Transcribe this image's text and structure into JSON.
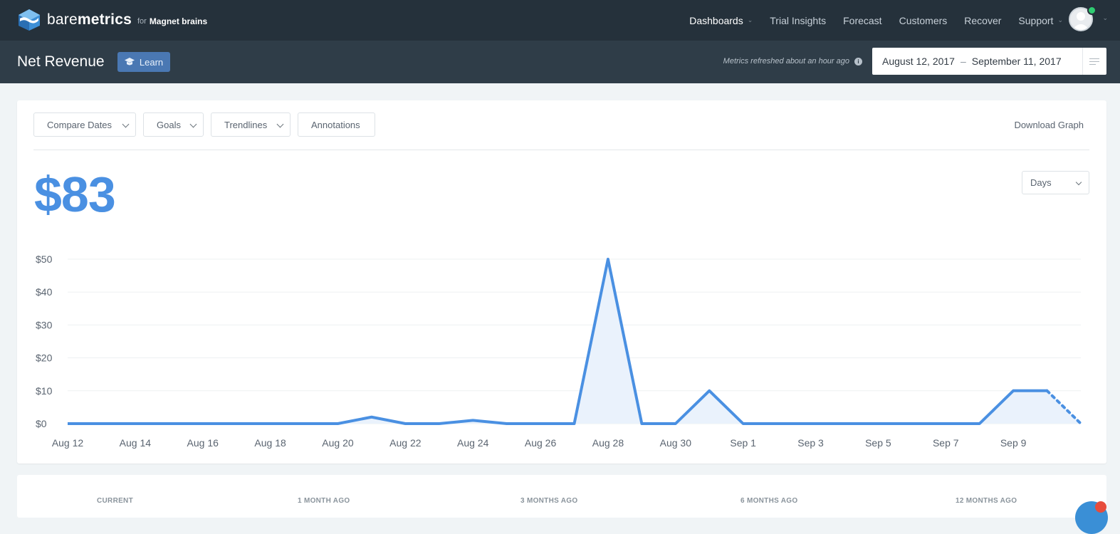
{
  "topbar": {
    "brand_light": "bare",
    "brand_bold": "metrics",
    "brand_for": "for",
    "brand_org": "Magnet brains",
    "nav": [
      {
        "label": "Dashboards",
        "active": true,
        "dropdown": true
      },
      {
        "label": "Trial Insights",
        "active": false,
        "dropdown": false
      },
      {
        "label": "Forecast",
        "active": false,
        "dropdown": false
      },
      {
        "label": "Customers",
        "active": false,
        "dropdown": false
      },
      {
        "label": "Recover",
        "active": false,
        "dropdown": false
      },
      {
        "label": "Support",
        "active": false,
        "dropdown": true
      }
    ]
  },
  "subbar": {
    "title": "Net Revenue",
    "learn_label": "Learn",
    "refresh_text": "Metrics refreshed  about an hour ago",
    "date_start": "August 12, 2017",
    "date_sep": "–",
    "date_end": "September 11, 2017"
  },
  "toolbar": {
    "compare_label": "Compare Dates",
    "goals_label": "Goals",
    "trendlines_label": "Trendlines",
    "annotations_label": "Annotations",
    "download_label": "Download Graph"
  },
  "metric": {
    "value": "$83",
    "interval": "Days"
  },
  "colors": {
    "accent": "#4a90e2",
    "area_fill": "#eaf2fc",
    "topbar": "#25313b",
    "subbar": "#2f3d48",
    "learn": "#4a78b3"
  },
  "chart_data": {
    "type": "area",
    "x": [
      "Aug 12",
      "Aug 13",
      "Aug 14",
      "Aug 15",
      "Aug 16",
      "Aug 17",
      "Aug 18",
      "Aug 19",
      "Aug 20",
      "Aug 21",
      "Aug 22",
      "Aug 23",
      "Aug 24",
      "Aug 25",
      "Aug 26",
      "Aug 27",
      "Aug 28",
      "Aug 29",
      "Aug 30",
      "Aug 31",
      "Sep 1",
      "Sep 2",
      "Sep 3",
      "Sep 4",
      "Sep 5",
      "Sep 6",
      "Sep 7",
      "Sep 8",
      "Sep 9",
      "Sep 10",
      "Sep 11"
    ],
    "values": [
      0,
      0,
      0,
      0,
      0,
      0,
      0,
      0,
      0,
      2,
      0,
      0,
      1,
      0,
      0,
      0,
      50,
      0,
      0,
      10,
      0,
      0,
      0,
      0,
      0,
      0,
      0,
      0,
      10,
      10,
      0
    ],
    "dotted_last_segment": true,
    "x_tick_labels": [
      "Aug 12",
      "Aug 14",
      "Aug 16",
      "Aug 18",
      "Aug 20",
      "Aug 22",
      "Aug 24",
      "Aug 26",
      "Aug 28",
      "Aug 30",
      "Sep 1",
      "Sep 3",
      "Sep 5",
      "Sep 7",
      "Sep 9"
    ],
    "y_ticks": [
      0,
      10,
      20,
      30,
      40,
      50
    ],
    "y_tick_labels": [
      "$0",
      "$10",
      "$20",
      "$30",
      "$40",
      "$50"
    ],
    "ylim": [
      0,
      50
    ],
    "grid": true
  },
  "summary": {
    "labels": [
      "CURRENT",
      "1 MONTH AGO",
      "3 MONTHS AGO",
      "6 MONTHS AGO",
      "12 MONTHS AGO"
    ]
  }
}
